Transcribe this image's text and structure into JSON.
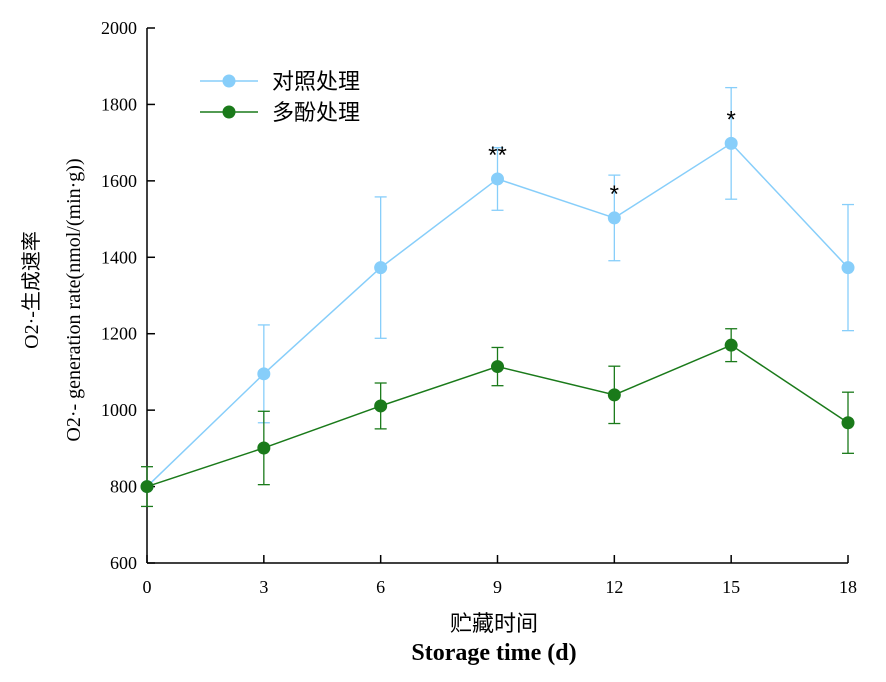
{
  "chart_data": {
    "type": "line",
    "x": [
      0,
      3,
      6,
      9,
      12,
      15,
      18
    ],
    "xlim": [
      0,
      18
    ],
    "ylim": [
      600,
      2000
    ],
    "xticks": [
      "0",
      "3",
      "6",
      "9",
      "12",
      "15",
      "18"
    ],
    "yticks": [
      "600",
      "800",
      "1000",
      "1200",
      "1400",
      "1600",
      "1800",
      "2000"
    ],
    "xlabel_cn": "贮藏时间",
    "xlabel_en": "Storage time (d)",
    "ylabel_cn": "O2·-生成速率",
    "ylabel_en": "O2·- generation rate(nmol/(min·g))",
    "grid": false,
    "legend_position": "top-left",
    "series": [
      {
        "name": "对照处理",
        "color": "#87CEFA",
        "values": [
          800,
          1095,
          1373,
          1605,
          1503,
          1698,
          1373
        ],
        "errors": [
          0,
          128,
          185,
          82,
          112,
          146,
          165
        ]
      },
      {
        "name": "多酚处理",
        "color": "#1a7a1a",
        "values": [
          800,
          901,
          1011,
          1114,
          1040,
          1170,
          967
        ],
        "errors": [
          52,
          96,
          60,
          50,
          75,
          43,
          80
        ]
      }
    ],
    "annotations": [
      {
        "x": 9,
        "y": 1605,
        "text": "**"
      },
      {
        "x": 12,
        "y": 1503,
        "text": "*"
      },
      {
        "x": 15,
        "y": 1698,
        "text": "*"
      }
    ]
  }
}
